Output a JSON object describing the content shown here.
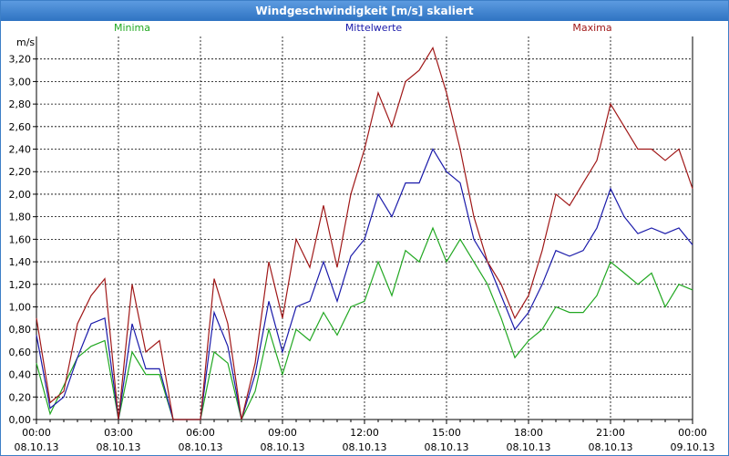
{
  "window": {
    "title": "Windgeschwindigkeit [m/s] skaliert"
  },
  "chart_data": {
    "type": "line",
    "title": "Windgeschwindigkeit [m/s] skaliert",
    "ylabel": "m/s",
    "xlabel": "",
    "ylim": [
      0,
      3.4
    ],
    "xlim_hours": [
      0,
      24
    ],
    "grid": true,
    "legend_placement": "top",
    "y_ticks": [
      "0,00",
      "0,20",
      "0,40",
      "0,60",
      "0,80",
      "1,00",
      "1,20",
      "1,40",
      "1,60",
      "1,80",
      "2,00",
      "2,20",
      "2,40",
      "2,60",
      "2,80",
      "3,00",
      "3,20"
    ],
    "x_ticks": [
      {
        "time": "00:00",
        "date": "08.10.13"
      },
      {
        "time": "03:00",
        "date": "08.10.13"
      },
      {
        "time": "06:00",
        "date": "08.10.13"
      },
      {
        "time": "09:00",
        "date": "08.10.13"
      },
      {
        "time": "12:00",
        "date": "08.10.13"
      },
      {
        "time": "15:00",
        "date": "08.10.13"
      },
      {
        "time": "18:00",
        "date": "08.10.13"
      },
      {
        "time": "21:00",
        "date": "08.10.13"
      },
      {
        "time": "00:00",
        "date": "09.10.13"
      }
    ],
    "x_hours": [
      0,
      0.5,
      1,
      1.5,
      2,
      2.5,
      3,
      3.5,
      4,
      4.5,
      5,
      5.5,
      6,
      6.5,
      7,
      7.5,
      8,
      8.5,
      9,
      9.5,
      10,
      10.5,
      11,
      11.5,
      12,
      12.5,
      13,
      13.5,
      14,
      14.5,
      15,
      15.5,
      16,
      16.5,
      17,
      17.5,
      18,
      18.5,
      19,
      19.5,
      20,
      20.5,
      21,
      21.5,
      22,
      22.5,
      23,
      23.5,
      24
    ],
    "series": [
      {
        "name": "Minima",
        "color": "#22a822",
        "values": [
          0.5,
          0.05,
          0.3,
          0.55,
          0.65,
          0.7,
          0.0,
          0.6,
          0.4,
          0.4,
          0.0,
          0.0,
          0.0,
          0.6,
          0.5,
          0.0,
          0.25,
          0.8,
          0.4,
          0.8,
          0.7,
          0.95,
          0.75,
          1.0,
          1.05,
          1.4,
          1.1,
          1.5,
          1.4,
          1.7,
          1.4,
          1.6,
          1.4,
          1.2,
          0.9,
          0.55,
          0.7,
          0.8,
          1.0,
          0.95,
          0.95,
          1.1,
          1.4,
          1.3,
          1.2,
          1.3,
          1.0,
          1.2,
          1.15
        ]
      },
      {
        "name": "Mittelwerte",
        "color": "#1a1aaa",
        "values": [
          0.75,
          0.1,
          0.2,
          0.55,
          0.85,
          0.9,
          0.0,
          0.85,
          0.45,
          0.45,
          0.0,
          0.0,
          0.0,
          0.95,
          0.65,
          0.0,
          0.4,
          1.05,
          0.6,
          1.0,
          1.05,
          1.4,
          1.05,
          1.45,
          1.6,
          2.0,
          1.8,
          2.1,
          2.1,
          2.4,
          2.2,
          2.1,
          1.6,
          1.4,
          1.1,
          0.8,
          0.95,
          1.2,
          1.5,
          1.45,
          1.5,
          1.7,
          2.05,
          1.8,
          1.65,
          1.7,
          1.65,
          1.7,
          1.55
        ]
      },
      {
        "name": "Maxima",
        "color": "#a01818",
        "values": [
          0.9,
          0.15,
          0.25,
          0.85,
          1.1,
          1.25,
          0.0,
          1.2,
          0.6,
          0.7,
          0.0,
          0.0,
          0.0,
          1.25,
          0.85,
          0.0,
          0.5,
          1.4,
          0.9,
          1.6,
          1.35,
          1.9,
          1.35,
          2.0,
          2.4,
          2.9,
          2.6,
          3.0,
          3.1,
          3.3,
          2.9,
          2.4,
          1.8,
          1.4,
          1.2,
          0.9,
          1.1,
          1.5,
          2.0,
          1.9,
          2.1,
          2.3,
          2.8,
          2.6,
          2.4,
          2.4,
          2.3,
          2.4,
          2.05
        ]
      }
    ]
  }
}
